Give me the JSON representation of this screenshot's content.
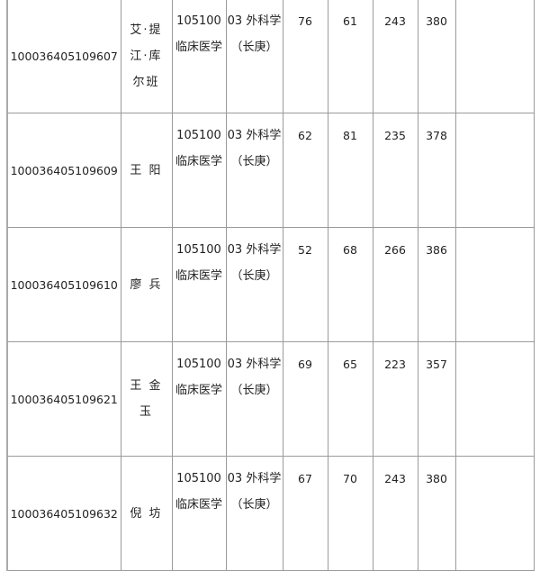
{
  "rows": [
    {
      "id": "100036405109607",
      "name": "艾·提江·库尔班",
      "major": "105100临床医学",
      "direction": "03 外科学（长庚）",
      "s1": "76",
      "s2": "61",
      "s3": "243",
      "total": "380",
      "note": ""
    },
    {
      "id": "100036405109609",
      "name": "王 阳",
      "major": "105100临床医学",
      "direction": "03 外科学（长庚）",
      "s1": "62",
      "s2": "81",
      "s3": "235",
      "total": "378",
      "note": ""
    },
    {
      "id": "100036405109610",
      "name": "廖 兵",
      "major": "105100临床医学",
      "direction": "03 外科学（长庚）",
      "s1": "52",
      "s2": "68",
      "s3": "266",
      "total": "386",
      "note": ""
    },
    {
      "id": "100036405109621",
      "name": "王 金 玉",
      "major": "105100临床医学",
      "direction": "03 外科学（长庚）",
      "s1": "69",
      "s2": "65",
      "s3": "223",
      "total": "357",
      "note": ""
    },
    {
      "id": "100036405109632",
      "name": "倪 坊",
      "major": "105100临床医学",
      "direction": "03 外科学（长庚）",
      "s1": "67",
      "s2": "70",
      "s3": "243",
      "total": "380",
      "note": ""
    }
  ]
}
